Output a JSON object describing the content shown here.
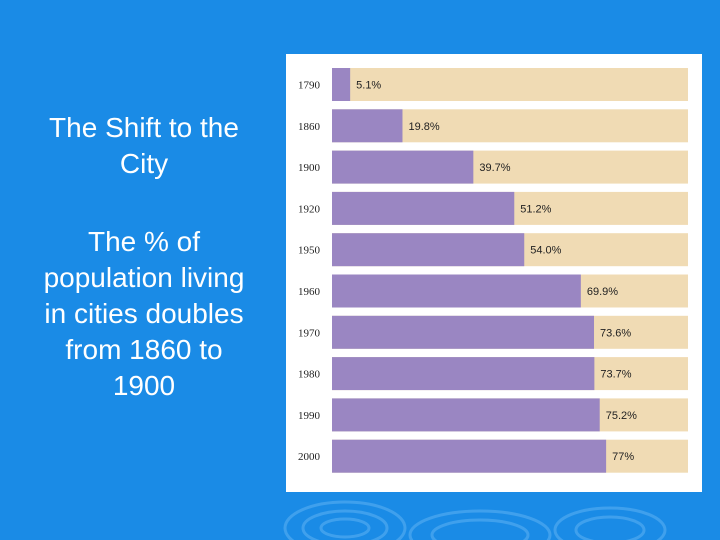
{
  "slide": {
    "title": "The Shift to the City",
    "body": "The % of population living in cities doubles from 1860 to 1900"
  },
  "colors": {
    "background": "#1a8be6",
    "bar_fill": "#9a86c2",
    "track_fill": "#f0dbb4",
    "panel": "#ffffff"
  },
  "chart_data": {
    "type": "bar",
    "orientation": "horizontal",
    "title": "",
    "xlabel": "",
    "ylabel": "",
    "xlim": [
      0,
      100
    ],
    "categories": [
      "1790",
      "1860",
      "1900",
      "1920",
      "1950",
      "1960",
      "1970",
      "1980",
      "1990",
      "2000"
    ],
    "values": [
      5.1,
      19.8,
      39.7,
      51.2,
      54.0,
      69.9,
      73.6,
      73.7,
      75.2,
      77
    ],
    "labels": [
      "5.1%",
      "19.8%",
      "39.7%",
      "51.2%",
      "54.0%",
      "69.9%",
      "73.6%",
      "73.7%",
      "75.2%",
      "77%"
    ]
  }
}
